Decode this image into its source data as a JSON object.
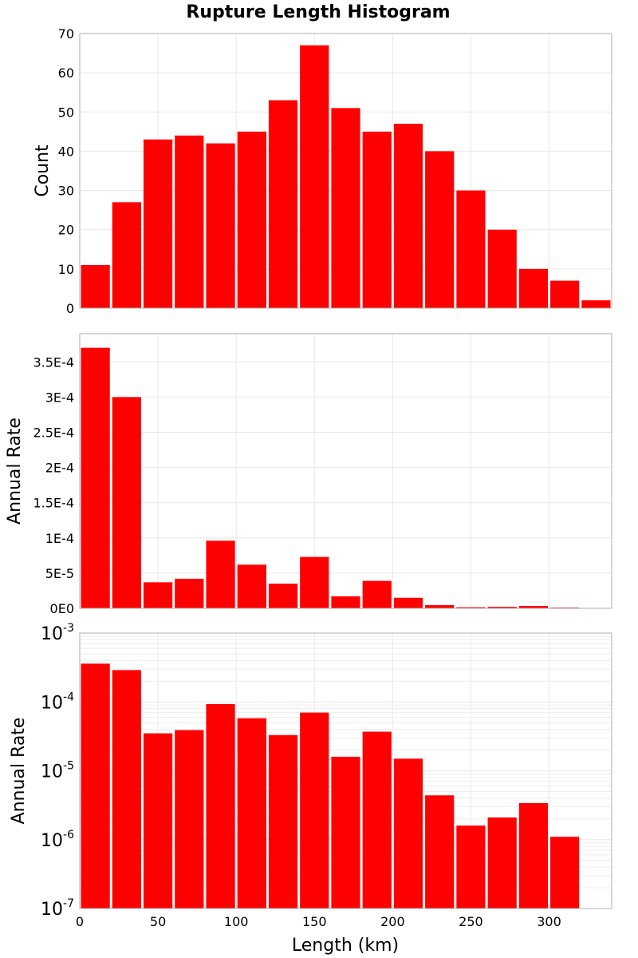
{
  "title": "Rupture Length Histogram",
  "xlabel": "Length (km)",
  "x_ticks": [
    "0",
    "50",
    "100",
    "150",
    "200",
    "250",
    "300"
  ],
  "bar_color": "#ff0000",
  "chart_data": [
    {
      "type": "bar",
      "title": "Rupture Length Histogram",
      "xlabel": "",
      "ylabel": "Count",
      "xlim": [
        0,
        340
      ],
      "ylim": [
        0,
        70
      ],
      "bin_width": 20,
      "x": [
        10,
        30,
        50,
        70,
        90,
        110,
        130,
        150,
        170,
        190,
        210,
        230,
        250,
        270,
        290,
        310,
        330
      ],
      "values": [
        11,
        27,
        43,
        44,
        42,
        45,
        53,
        67,
        51,
        45,
        47,
        40,
        30,
        20,
        10,
        7,
        2
      ],
      "y_ticks": [
        "0",
        "10",
        "20",
        "30",
        "40",
        "50",
        "60",
        "70"
      ],
      "grid": true
    },
    {
      "type": "bar",
      "xlabel": "",
      "ylabel": "Annual Rate",
      "xlim": [
        0,
        340
      ],
      "ylim": [
        0,
        0.00039
      ],
      "bin_width": 20,
      "x": [
        10,
        30,
        50,
        70,
        90,
        110,
        130,
        150,
        170,
        190,
        210,
        230,
        250,
        270,
        290,
        310,
        330
      ],
      "values": [
        0.00037,
        0.0003,
        3.7e-05,
        4.2e-05,
        9.6e-05,
        6.2e-05,
        3.5e-05,
        7.3e-05,
        1.7e-05,
        3.9e-05,
        1.5e-05,
        4.5e-06,
        1.6e-06,
        2.1e-06,
        3.4e-06,
        1.1e-06,
        1e-07
      ],
      "y_ticks": [
        "0E0",
        "5E-5",
        "1E-4",
        "1.5E-4",
        "2E-4",
        "2.5E-4",
        "3E-4",
        "3.5E-4"
      ],
      "grid": true
    },
    {
      "type": "bar",
      "xlabel": "Length (km)",
      "ylabel": "Annual Rate",
      "yscale": "log",
      "xlim": [
        0,
        340
      ],
      "ylim": [
        1e-07,
        0.001
      ],
      "bin_width": 20,
      "x": [
        10,
        30,
        50,
        70,
        90,
        110,
        130,
        150,
        170,
        190,
        210,
        230,
        250,
        270,
        290,
        310,
        330
      ],
      "values": [
        0.00036,
        0.00029,
        3.5e-05,
        3.9e-05,
        9.3e-05,
        5.8e-05,
        3.3e-05,
        7e-05,
        1.6e-05,
        3.7e-05,
        1.5e-05,
        4.4e-06,
        1.6e-06,
        2.1e-06,
        3.4e-06,
        1.1e-06,
        1e-07
      ],
      "y_ticks": [
        {
          "base": "10",
          "exp": "-3"
        },
        {
          "base": "10",
          "exp": "-4"
        },
        {
          "base": "10",
          "exp": "-5"
        },
        {
          "base": "10",
          "exp": "-6"
        },
        {
          "base": "10",
          "exp": "-7"
        }
      ],
      "grid": true
    }
  ]
}
